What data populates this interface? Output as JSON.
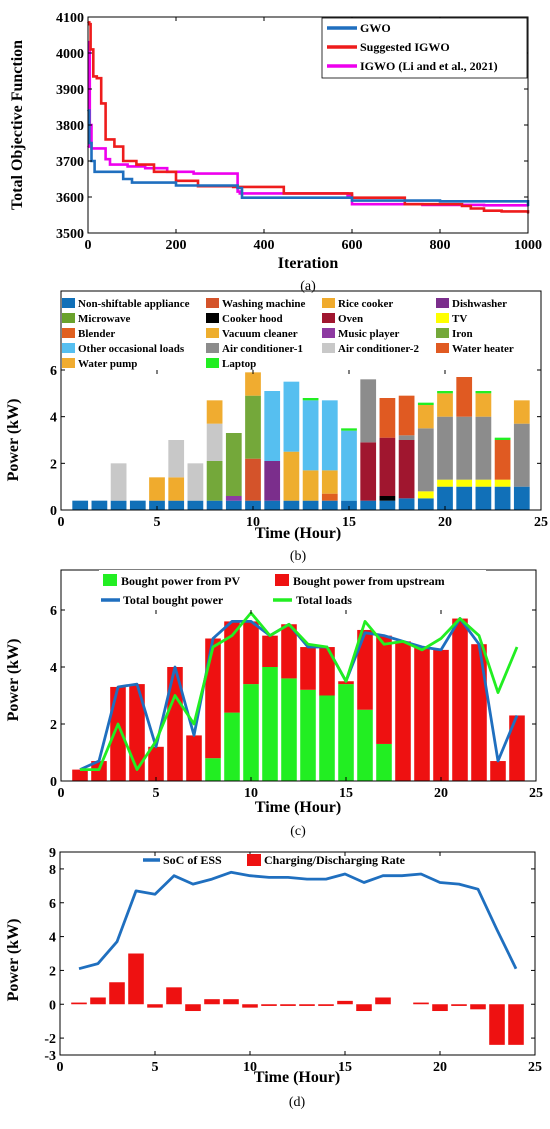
{
  "chart_data": [
    {
      "type": "line",
      "caption": "(a)",
      "xlabel": "Iteration",
      "ylabel": "Total Objective Function",
      "xlim": [
        0,
        1000
      ],
      "ylim": [
        3500,
        4100
      ],
      "xticks": [
        "0",
        "200",
        "400",
        "600",
        "800",
        "1000"
      ],
      "yticks": [
        "3500",
        "3600",
        "3700",
        "3800",
        "3900",
        "4000",
        "4100"
      ],
      "legend_position": "top-right",
      "series": [
        {
          "name": "GWO",
          "color": "#1f6fbf",
          "step": true,
          "x": [
            0,
            3,
            8,
            15,
            80,
            100,
            200,
            340,
            350,
            600,
            800,
            1000
          ],
          "y": [
            3840,
            3750,
            3700,
            3670,
            3650,
            3640,
            3632,
            3625,
            3598,
            3590,
            3588,
            3575
          ]
        },
        {
          "name": "Suggested IGWO",
          "color": "#ee1c1c",
          "step": true,
          "x": [
            0,
            3,
            6,
            12,
            20,
            30,
            40,
            60,
            80,
            110,
            150,
            200,
            250,
            330,
            445,
            600,
            720,
            850,
            870,
            900,
            940,
            1000
          ],
          "y": [
            4085,
            4080,
            4010,
            3935,
            3930,
            3860,
            3760,
            3740,
            3700,
            3690,
            3670,
            3645,
            3630,
            3628,
            3610,
            3598,
            3580,
            3575,
            3568,
            3562,
            3560,
            3555
          ]
        },
        {
          "name": "IGWO (Li and et al., 2021)",
          "color": "#ee00ee",
          "step": true,
          "x": [
            0,
            2,
            4,
            8,
            40,
            50,
            90,
            130,
            180,
            240,
            340,
            345,
            590,
            600,
            760,
            900,
            1000
          ],
          "y": [
            3740,
            4030,
            3800,
            3735,
            3705,
            3690,
            3685,
            3680,
            3670,
            3665,
            3615,
            3610,
            3605,
            3580,
            3578,
            3577,
            3577
          ]
        }
      ]
    },
    {
      "type": "bar",
      "stacked": true,
      "caption": "(b)",
      "xlabel": "Time (Hour)",
      "ylabel": "Power (kW)",
      "xlim": [
        0,
        25
      ],
      "ylim": [
        0,
        6
      ],
      "xticks": [
        "0",
        "5",
        "10",
        "15",
        "20",
        "25"
      ],
      "yticks": [
        "0",
        "2",
        "4",
        "6"
      ],
      "x": [
        1,
        2,
        3,
        4,
        5,
        6,
        7,
        8,
        9,
        10,
        11,
        12,
        13,
        14,
        15,
        16,
        17,
        18,
        19,
        20,
        21,
        22,
        23,
        24
      ],
      "series": [
        {
          "name": "Non-shiftable appliance",
          "color": "#1170b8",
          "values": [
            0.4,
            0.4,
            0.4,
            0.4,
            0.4,
            0.4,
            0.4,
            0.4,
            0.4,
            0.4,
            0.4,
            0.4,
            0.4,
            0.4,
            0.4,
            0.4,
            0.4,
            0.5,
            0.5,
            1.0,
            1.0,
            1.0,
            1.0,
            1.0
          ]
        },
        {
          "name": "Washing machine",
          "color": "#d4532a",
          "values": [
            0,
            0,
            0,
            0,
            0,
            0,
            0,
            0,
            0,
            1.8,
            0,
            0,
            0,
            0,
            0,
            0,
            0,
            0,
            0,
            0,
            0,
            0,
            0,
            0
          ]
        },
        {
          "name": "Rice cooker",
          "color": "#f0ab2d",
          "values": [
            0,
            0,
            0,
            0,
            1.0,
            1.0,
            0,
            0,
            0,
            0,
            0,
            0,
            0,
            0,
            0,
            0,
            0,
            0,
            0,
            0,
            0,
            0,
            0,
            0
          ]
        },
        {
          "name": "Dishwasher",
          "color": "#7b2e8c",
          "values": [
            0,
            0,
            0,
            0,
            0,
            0,
            0,
            0,
            0,
            0,
            1.7,
            0,
            0,
            0,
            0,
            0,
            0,
            0,
            0,
            0,
            0,
            0,
            0,
            0
          ]
        },
        {
          "name": "Microwave",
          "color": "#6aa22c",
          "values": [
            0,
            0,
            0,
            0,
            0,
            0,
            0,
            0,
            0,
            0,
            0,
            0,
            0,
            0,
            0,
            0,
            0,
            0,
            0,
            0,
            0,
            0,
            0,
            0
          ]
        },
        {
          "name": "Cooker hood",
          "color": "#000000",
          "values": [
            0,
            0,
            0,
            0,
            0,
            0,
            0,
            0,
            0,
            0,
            0,
            0,
            0,
            0,
            0,
            0,
            0.2,
            0,
            0,
            0,
            0,
            0,
            0,
            0
          ]
        },
        {
          "name": "Oven",
          "color": "#a0162f",
          "values": [
            0,
            0,
            0,
            0,
            0,
            0,
            0,
            0,
            0,
            0,
            0,
            0,
            0,
            0,
            0,
            2.5,
            2.5,
            2.5,
            0,
            0,
            0,
            0,
            0,
            0
          ]
        },
        {
          "name": "TV",
          "color": "#ffff00",
          "values": [
            0,
            0,
            0,
            0,
            0,
            0,
            0,
            0,
            0,
            0,
            0,
            0,
            0,
            0,
            0,
            0,
            0,
            0,
            0.3,
            0.3,
            0.3,
            0.3,
            0.3,
            0
          ]
        },
        {
          "name": "Blender",
          "color": "#e06020",
          "values": [
            0,
            0,
            0,
            0,
            0,
            0,
            0,
            0,
            0,
            0,
            0,
            0,
            0,
            0.3,
            0,
            0,
            0,
            0,
            0,
            0,
            0,
            0,
            0,
            0
          ]
        },
        {
          "name": "Vacuum cleaner",
          "color": "#eeae2e",
          "values": [
            0,
            0,
            0,
            0,
            0,
            0,
            0,
            0,
            0,
            0,
            0,
            2.1,
            1.3,
            1.0,
            0,
            0,
            0,
            0,
            0,
            0,
            0,
            0,
            0,
            0
          ]
        },
        {
          "name": "Music player",
          "color": "#8e3aa2",
          "values": [
            0,
            0,
            0,
            0,
            0,
            0,
            0,
            0,
            0.2,
            0,
            0,
            0,
            0,
            0,
            0,
            0,
            0,
            0,
            0,
            0,
            0,
            0,
            0,
            0
          ]
        },
        {
          "name": "Iron",
          "color": "#74a83a",
          "values": [
            0,
            0,
            0,
            0,
            0,
            0,
            0,
            1.7,
            2.7,
            2.7,
            0,
            0,
            0,
            0,
            0,
            0,
            0,
            0,
            0,
            0,
            0,
            0,
            0,
            0
          ]
        },
        {
          "name": "Other occasional loads",
          "color": "#56bff0",
          "values": [
            0,
            0,
            0,
            0,
            0,
            0,
            0,
            0,
            0,
            0,
            3.0,
            3.0,
            3.0,
            3.0,
            3.0,
            0,
            0,
            0,
            0,
            0,
            0,
            0,
            0,
            0
          ]
        },
        {
          "name": "Air conditioner-1",
          "color": "#8c8c8c",
          "values": [
            0,
            0,
            0,
            0,
            0,
            0,
            0,
            0,
            0,
            0,
            0,
            0,
            0,
            0,
            0,
            2.7,
            0,
            0.2,
            2.7,
            2.7,
            2.7,
            2.7,
            0,
            2.7
          ]
        },
        {
          "name": "Air conditioner-2",
          "color": "#c8c8c8",
          "values": [
            0,
            0,
            1.6,
            0,
            0,
            1.6,
            1.6,
            1.6,
            0,
            0,
            0,
            0,
            0,
            0,
            0,
            0,
            0,
            0,
            0,
            0,
            0,
            0,
            0,
            0
          ]
        },
        {
          "name": "Water heater",
          "color": "#e05a22",
          "values": [
            0,
            0,
            0,
            0,
            0,
            0,
            0,
            0,
            0,
            0,
            0,
            0,
            0,
            0,
            0,
            0,
            1.7,
            1.7,
            0,
            0,
            1.7,
            0,
            1.7,
            0
          ]
        },
        {
          "name": "Water pump",
          "color": "#f0ac30",
          "values": [
            0,
            0,
            0,
            0,
            0,
            0,
            0,
            1.0,
            0,
            1.0,
            0,
            0,
            0,
            0,
            0,
            0,
            0,
            0,
            1.0,
            1.0,
            0,
            1.0,
            0,
            1.0
          ]
        },
        {
          "name": "Laptop",
          "color": "#22ee22",
          "values": [
            0,
            0,
            0,
            0,
            0,
            0,
            0,
            0,
            0,
            0,
            0,
            0,
            0.1,
            0,
            0.1,
            0,
            0,
            0,
            0.1,
            0.1,
            0,
            0.1,
            0.1,
            0
          ]
        }
      ]
    },
    {
      "type": "bar",
      "caption": "(c)",
      "xlabel": "Time (Hour)",
      "ylabel": "Power (kW)",
      "xlim": [
        0,
        25
      ],
      "ylim": [
        0,
        6
      ],
      "xticks": [
        "0",
        "5",
        "10",
        "15",
        "20",
        "25"
      ],
      "yticks": [
        "0",
        "2",
        "4",
        "6"
      ],
      "x": [
        1,
        2,
        3,
        4,
        5,
        6,
        7,
        8,
        9,
        10,
        11,
        12,
        13,
        14,
        15,
        16,
        17,
        18,
        19,
        20,
        21,
        22,
        23,
        24
      ],
      "series": [
        {
          "name": "Bought power from PV",
          "color": "#22ee22",
          "kind": "bar-bottom",
          "values": [
            0,
            0,
            0,
            0,
            0,
            0,
            0,
            0.8,
            2.4,
            3.4,
            4.0,
            3.6,
            3.2,
            3.0,
            3.4,
            2.5,
            1.3,
            0,
            0,
            0,
            0,
            0,
            0,
            0
          ]
        },
        {
          "name": "Bought power from upstream",
          "color": "#ee1111",
          "kind": "bar-top",
          "values": [
            0.4,
            0.7,
            3.3,
            3.4,
            1.2,
            4.0,
            1.6,
            4.2,
            3.2,
            2.2,
            1.1,
            1.9,
            1.5,
            1.7,
            0.1,
            2.8,
            3.8,
            4.9,
            4.7,
            4.6,
            5.7,
            4.8,
            0.7,
            2.3
          ]
        },
        {
          "name": "Total bought power",
          "color": "#1f6fbf",
          "kind": "line",
          "values": [
            0.4,
            0.7,
            3.3,
            3.4,
            1.2,
            4.0,
            1.6,
            5.0,
            5.6,
            5.6,
            5.1,
            5.5,
            4.7,
            4.7,
            3.5,
            5.2,
            5.1,
            4.9,
            4.7,
            4.6,
            5.7,
            4.8,
            0.7,
            2.3
          ]
        },
        {
          "name": "Total loads",
          "color": "#22ee22",
          "kind": "line",
          "values": [
            0.4,
            0.4,
            2.0,
            0.4,
            1.4,
            3.0,
            2.0,
            4.7,
            5.1,
            5.9,
            5.1,
            5.5,
            4.8,
            4.7,
            3.5,
            5.6,
            4.8,
            4.9,
            4.6,
            5.0,
            5.7,
            5.1,
            3.1,
            4.7
          ]
        }
      ]
    },
    {
      "type": "bar",
      "caption": "(d)",
      "xlabel": "Time (Hour)",
      "ylabel": "Power (kW)",
      "xlim": [
        0,
        25
      ],
      "ylim": [
        -3,
        9
      ],
      "xticks": [
        "0",
        "5",
        "10",
        "15",
        "20",
        "25"
      ],
      "yticks": [
        "-3",
        "-2",
        "0",
        "2",
        "4",
        "6",
        "8",
        "9"
      ],
      "x": [
        1,
        2,
        3,
        4,
        5,
        6,
        7,
        8,
        9,
        10,
        11,
        12,
        13,
        14,
        15,
        16,
        17,
        18,
        19,
        20,
        21,
        22,
        23,
        24
      ],
      "series": [
        {
          "name": "SoC of ESS",
          "color": "#1f6fbf",
          "kind": "line",
          "values": [
            2.1,
            2.4,
            3.7,
            6.7,
            6.5,
            7.6,
            7.1,
            7.4,
            7.8,
            7.6,
            7.5,
            7.5,
            7.4,
            7.4,
            7.7,
            7.2,
            7.6,
            7.6,
            7.7,
            7.2,
            7.1,
            6.8,
            4.4,
            2.1
          ]
        },
        {
          "name": "Charging/Discharging Rate",
          "color": "#ee1111",
          "kind": "bar",
          "values": [
            0.1,
            0.4,
            1.3,
            3.0,
            -0.2,
            1.0,
            -0.4,
            0.3,
            0.3,
            -0.2,
            -0.1,
            -0.1,
            -0.1,
            -0.1,
            0.2,
            -0.4,
            0.4,
            0,
            0.1,
            -0.4,
            -0.1,
            -0.3,
            -2.4,
            -2.4
          ]
        }
      ]
    }
  ]
}
